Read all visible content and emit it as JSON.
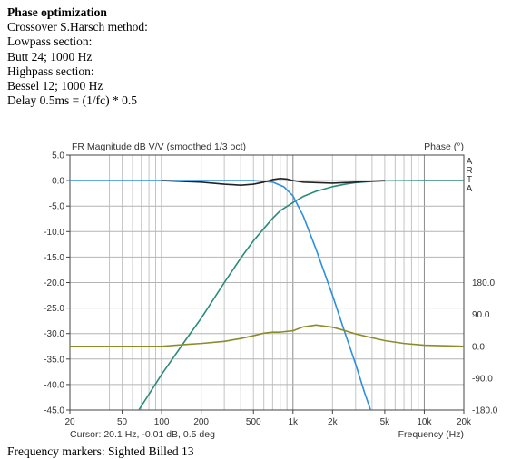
{
  "notes": {
    "title": "Phase optimization",
    "lines": [
      "Crossover S.Harsch method:",
      "Lowpass section:",
      "Butt 24; 1000 Hz",
      "Highpass section:",
      "Bessel 12; 1000 Hz",
      "Delay 0.5ms = (1/fc) * 0.5"
    ]
  },
  "chart_data": {
    "type": "line",
    "title": "FR Magnitude dB V/V (smoothed 1/3 oct)",
    "right_axis_title": "Phase (°)",
    "vertical_brand": "ARTA",
    "xlabel": "Frequency (Hz)",
    "cursor_text": "Cursor: 20.1 Hz, -0.01 dB, 0.5 deg",
    "x_scale": "log",
    "xlim": [
      20,
      20000
    ],
    "ylim": [
      -45,
      5
    ],
    "y2lim": [
      -180,
      180
    ],
    "grid": true,
    "x_ticks": [
      {
        "value": 20,
        "label": "20"
      },
      {
        "value": 50,
        "label": "50"
      },
      {
        "value": 100,
        "label": "100"
      },
      {
        "value": 200,
        "label": "200"
      },
      {
        "value": 500,
        "label": "500"
      },
      {
        "value": 1000,
        "label": "1k"
      },
      {
        "value": 2000,
        "label": "2k"
      },
      {
        "value": 5000,
        "label": "5k"
      },
      {
        "value": 10000,
        "label": "10k"
      },
      {
        "value": 20000,
        "label": "20k"
      }
    ],
    "y_ticks": [
      {
        "value": 5,
        "label": "5.0"
      },
      {
        "value": 0,
        "label": "0.0"
      },
      {
        "value": -5,
        "label": "-5.0"
      },
      {
        "value": -10,
        "label": "-10.0"
      },
      {
        "value": -15,
        "label": "-15.0"
      },
      {
        "value": -20,
        "label": "-20.0"
      },
      {
        "value": -25,
        "label": "-25.0"
      },
      {
        "value": -30,
        "label": "-30.0"
      },
      {
        "value": -35,
        "label": "-35.0"
      },
      {
        "value": -40,
        "label": "-40.0"
      },
      {
        "value": -45,
        "label": "-45.0"
      }
    ],
    "y2_ticks": [
      {
        "value": 180,
        "label": "180.0"
      },
      {
        "value": 90,
        "label": "90.0"
      },
      {
        "value": 0,
        "label": "0.0"
      },
      {
        "value": -90,
        "label": "-90.0"
      },
      {
        "value": -180,
        "label": "-180.0"
      }
    ],
    "series": [
      {
        "color": "#2a8a7a",
        "axis": "left",
        "points": [
          [
            67,
            -45
          ],
          [
            100,
            -38
          ],
          [
            150,
            -31.5
          ],
          [
            200,
            -27
          ],
          [
            300,
            -20
          ],
          [
            400,
            -15.2
          ],
          [
            500,
            -11.8
          ],
          [
            600,
            -9.4
          ],
          [
            700,
            -7.4
          ],
          [
            800,
            -5.9
          ],
          [
            1000,
            -4.3
          ],
          [
            1200,
            -3.1
          ],
          [
            1500,
            -2.1
          ],
          [
            2000,
            -1.2
          ],
          [
            2500,
            -0.7
          ],
          [
            3000,
            -0.4
          ],
          [
            4000,
            -0.15
          ],
          [
            5000,
            -0.05
          ],
          [
            10000,
            0
          ],
          [
            20000,
            0
          ]
        ]
      },
      {
        "color": "#2b8fe0",
        "axis": "left",
        "points": [
          [
            20,
            0
          ],
          [
            300,
            0
          ],
          [
            500,
            0
          ],
          [
            700,
            -0.3
          ],
          [
            850,
            -1.2
          ],
          [
            1000,
            -3
          ],
          [
            1200,
            -7
          ],
          [
            1500,
            -13.5
          ],
          [
            2000,
            -22.5
          ],
          [
            2500,
            -30
          ],
          [
            3000,
            -36
          ],
          [
            3500,
            -41.5
          ],
          [
            3900,
            -45
          ]
        ]
      },
      {
        "color": "#222222",
        "axis": "left",
        "points": [
          [
            100,
            0
          ],
          [
            200,
            -0.3
          ],
          [
            300,
            -0.7
          ],
          [
            400,
            -0.9
          ],
          [
            500,
            -0.7
          ],
          [
            600,
            -0.3
          ],
          [
            700,
            0.2
          ],
          [
            800,
            0.4
          ],
          [
            900,
            0.3
          ],
          [
            1000,
            0
          ],
          [
            1200,
            -0.3
          ],
          [
            1500,
            -0.4
          ],
          [
            2000,
            -0.5
          ],
          [
            3000,
            -0.3
          ],
          [
            4000,
            -0.1
          ],
          [
            5000,
            0
          ]
        ]
      },
      {
        "color": "#8b8b2a",
        "axis": "right",
        "points": [
          [
            20,
            0
          ],
          [
            100,
            0
          ],
          [
            150,
            5
          ],
          [
            200,
            8
          ],
          [
            300,
            14
          ],
          [
            400,
            22
          ],
          [
            500,
            30
          ],
          [
            600,
            37
          ],
          [
            700,
            40
          ],
          [
            800,
            40
          ],
          [
            1000,
            44
          ],
          [
            1200,
            55
          ],
          [
            1500,
            60
          ],
          [
            2000,
            54
          ],
          [
            2500,
            44
          ],
          [
            3000,
            35
          ],
          [
            4000,
            24
          ],
          [
            5000,
            16
          ],
          [
            7000,
            8
          ],
          [
            10000,
            3
          ],
          [
            20000,
            0
          ]
        ]
      }
    ]
  },
  "overflow_text": "Frequency markers: Sighted   Billed  13"
}
